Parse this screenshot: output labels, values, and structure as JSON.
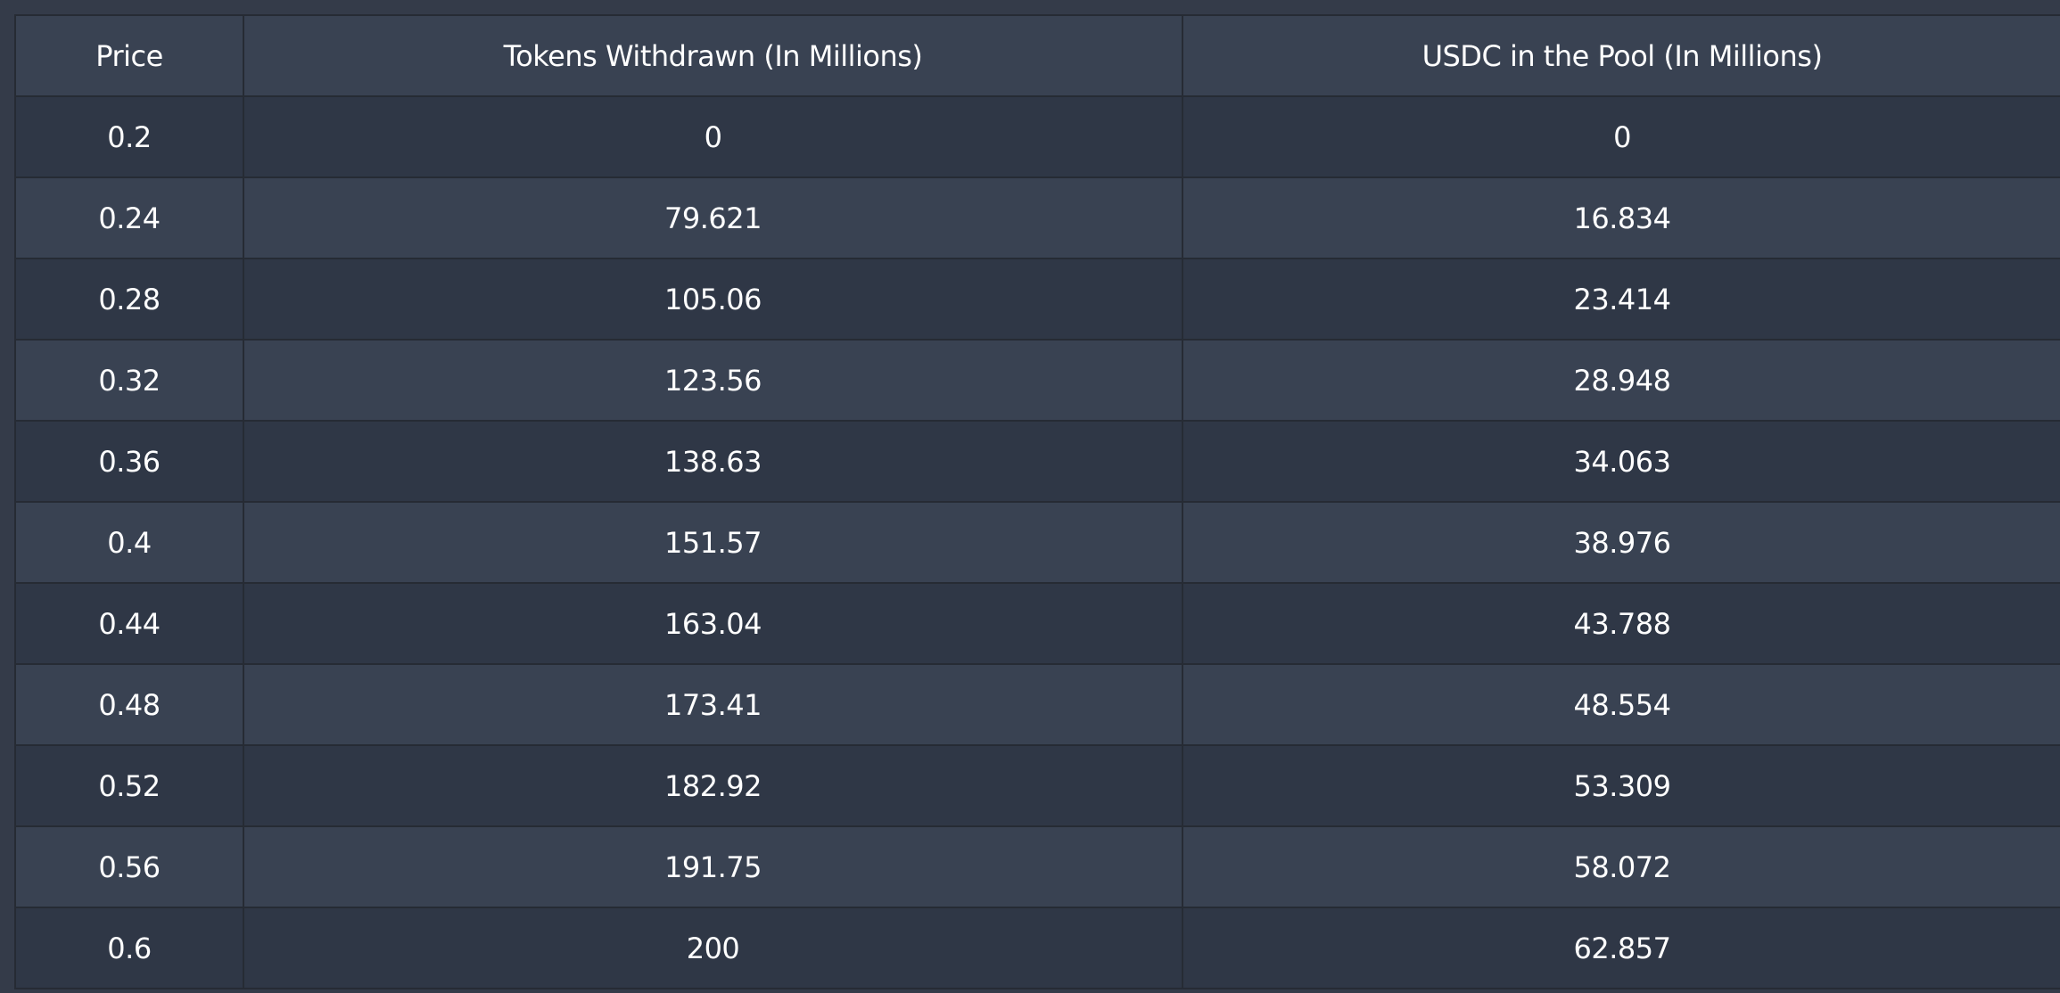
{
  "colors": {
    "page_background": "#343b49",
    "header_background": "#394252",
    "row_dark": "#2f3746",
    "row_light": "#394252",
    "border": "#262b34",
    "text": "#ffffff"
  },
  "table": {
    "headers": [
      "Price",
      "Tokens Withdrawn (In Millions)",
      "USDC in the Pool (In Millions)"
    ],
    "rows": [
      [
        "0.2",
        "0",
        "0"
      ],
      [
        "0.24",
        "79.621",
        "16.834"
      ],
      [
        "0.28",
        "105.06",
        "23.414"
      ],
      [
        "0.32",
        "123.56",
        "28.948"
      ],
      [
        "0.36",
        "138.63",
        "34.063"
      ],
      [
        "0.4",
        "151.57",
        "38.976"
      ],
      [
        "0.44",
        "163.04",
        "43.788"
      ],
      [
        "0.48",
        "173.41",
        "48.554"
      ],
      [
        "0.52",
        "182.92",
        "53.309"
      ],
      [
        "0.56",
        "191.75",
        "58.072"
      ],
      [
        "0.6",
        "200",
        "62.857"
      ]
    ]
  }
}
